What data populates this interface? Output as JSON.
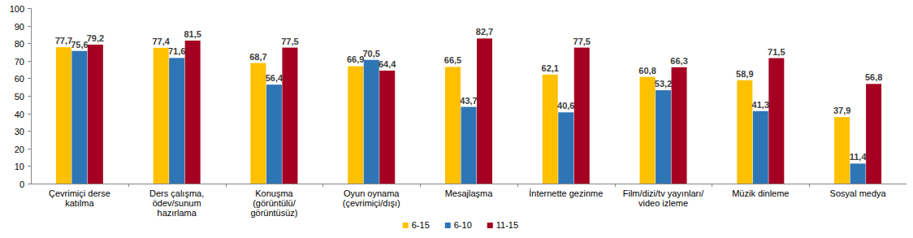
{
  "chart_data": {
    "type": "bar",
    "categories": [
      "Çevrimiçi derse\nkatılma",
      "Ders çalışma,\nödev/sunum\nhazırlama",
      "Konuşma\n(görüntülü/\ngörüntüsüz)",
      "Oyun oynama\n(çevrimiçi/dışı)",
      "Mesajlaşma",
      "İnternette gezinme",
      "Film/dizi/tv yayınları/\nvideo izleme",
      "Müzik dinleme",
      "Sosyal medya"
    ],
    "series": [
      {
        "name": "6-15",
        "color": "#ffc000",
        "values": [
          77.7,
          77.4,
          68.7,
          66.9,
          66.5,
          62.1,
          60.8,
          58.9,
          37.9
        ],
        "value_labels": [
          "77,7",
          "77,4",
          "68,7",
          "66,9",
          "66,5",
          "62,1",
          "60,8",
          "58,9",
          "37,9"
        ]
      },
      {
        "name": "6-10",
        "color": "#2e75b6",
        "values": [
          75.6,
          71.6,
          56.4,
          70.5,
          43.7,
          40.6,
          53.2,
          41.3,
          11.4
        ],
        "value_labels": [
          "75,6",
          "71,6",
          "56,4",
          "70,5",
          "43,7",
          "40,6",
          "53,2",
          "41,3",
          "11,4"
        ]
      },
      {
        "name": "11-15",
        "color": "#a50021",
        "values": [
          79.2,
          81.5,
          77.5,
          64.4,
          82.7,
          77.5,
          66.3,
          71.5,
          56.8
        ],
        "value_labels": [
          "79,2",
          "81,5",
          "77,5",
          "64,4",
          "82,7",
          "77,5",
          "66,3",
          "71,5",
          "56,8"
        ]
      }
    ],
    "ylim": [
      0,
      100
    ],
    "yticks": [
      0,
      10,
      20,
      30,
      40,
      50,
      60,
      70,
      80,
      90,
      100
    ],
    "grid": false,
    "data_labels": true,
    "legend": "bottom"
  }
}
